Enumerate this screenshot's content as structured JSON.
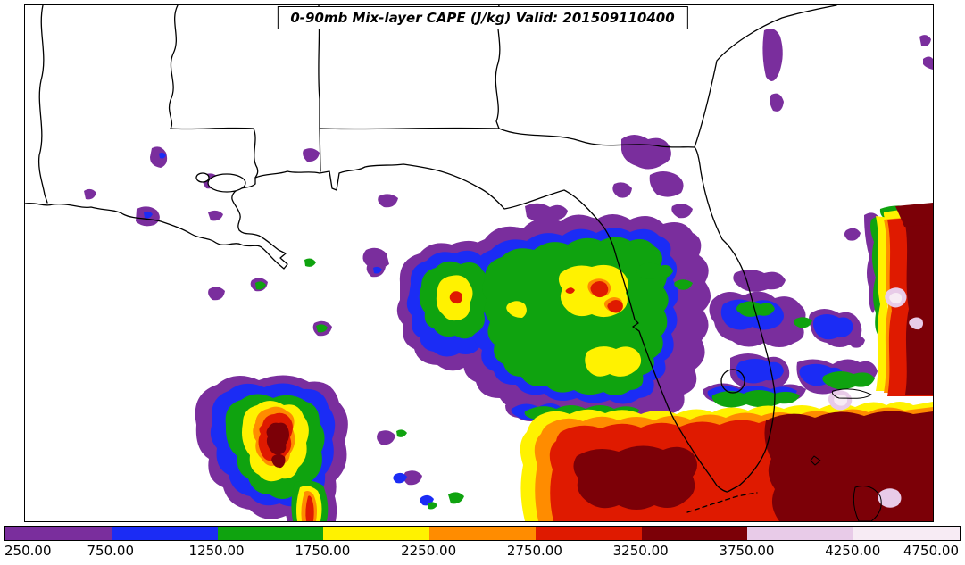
{
  "title_box": {
    "text": "0-90mb Mix-layer CAPE (J/kg) Valid: 201509110400"
  },
  "chart_data": {
    "type": "heatmap",
    "title": "0-90mb Mix-layer CAPE (J/kg) Valid: 201509110400",
    "variable": "0-90mb Mix-layer CAPE",
    "units": "J/kg",
    "valid_time": "201509110400",
    "region": "U.S. Gulf Coast, Florida peninsula, Gulf of Mexico and adjacent Atlantic",
    "legend_position": "bottom",
    "grid": false,
    "levels": [
      250,
      750,
      1250,
      1750,
      2250,
      2750,
      3250,
      3750,
      4250,
      4750
    ],
    "tick_labels": [
      "250.00",
      "750.00",
      "1250.00",
      "1750.00",
      "2250.00",
      "2750.00",
      "3250.00",
      "3750.00",
      "4250.00",
      "4750.00"
    ],
    "palette": [
      "#7A2E9D",
      "#1B2CF5",
      "#0FA30F",
      "#FFF200",
      "#FF8C00",
      "#DF1A00",
      "#7C0007",
      "#E8CBE8",
      "#F7EBF4"
    ],
    "palette_meaning": [
      {
        "range": "250-750",
        "color": "#7A2E9D"
      },
      {
        "range": "750-1250",
        "color": "#1B2CF5"
      },
      {
        "range": "1250-1750",
        "color": "#0FA30F"
      },
      {
        "range": "1750-2250",
        "color": "#FFF200"
      },
      {
        "range": "2250-2750",
        "color": "#FF8C00"
      },
      {
        "range": "2750-3250",
        "color": "#DF1A00"
      },
      {
        "range": "3250-3750",
        "color": "#7C0007"
      },
      {
        "range": "3750-4250",
        "color": "#E8CBE8"
      },
      {
        "range": "4250-4750",
        "color": "#F7EBF4"
      }
    ],
    "maxima": [
      {
        "area": "central Gulf storm cluster south of the Mississippi delta",
        "approx_value": 3600
      },
      {
        "area": "south Florida and Florida Straits broad hot area",
        "approx_value": 3500
      },
      {
        "area": "Atlantic along right edge of map",
        "approx_value": 4500
      },
      {
        "area": "cells over central Florida",
        "approx_value": 3100
      },
      {
        "area": "eastern Gulf cell west of Tampa",
        "approx_value": 2900
      }
    ],
    "minima_note": "White areas are below 250 J/kg; scattered 250-1250 J/kg patches over Georgia, inland Louisiana/Mississippi and east of the Florida coast"
  }
}
